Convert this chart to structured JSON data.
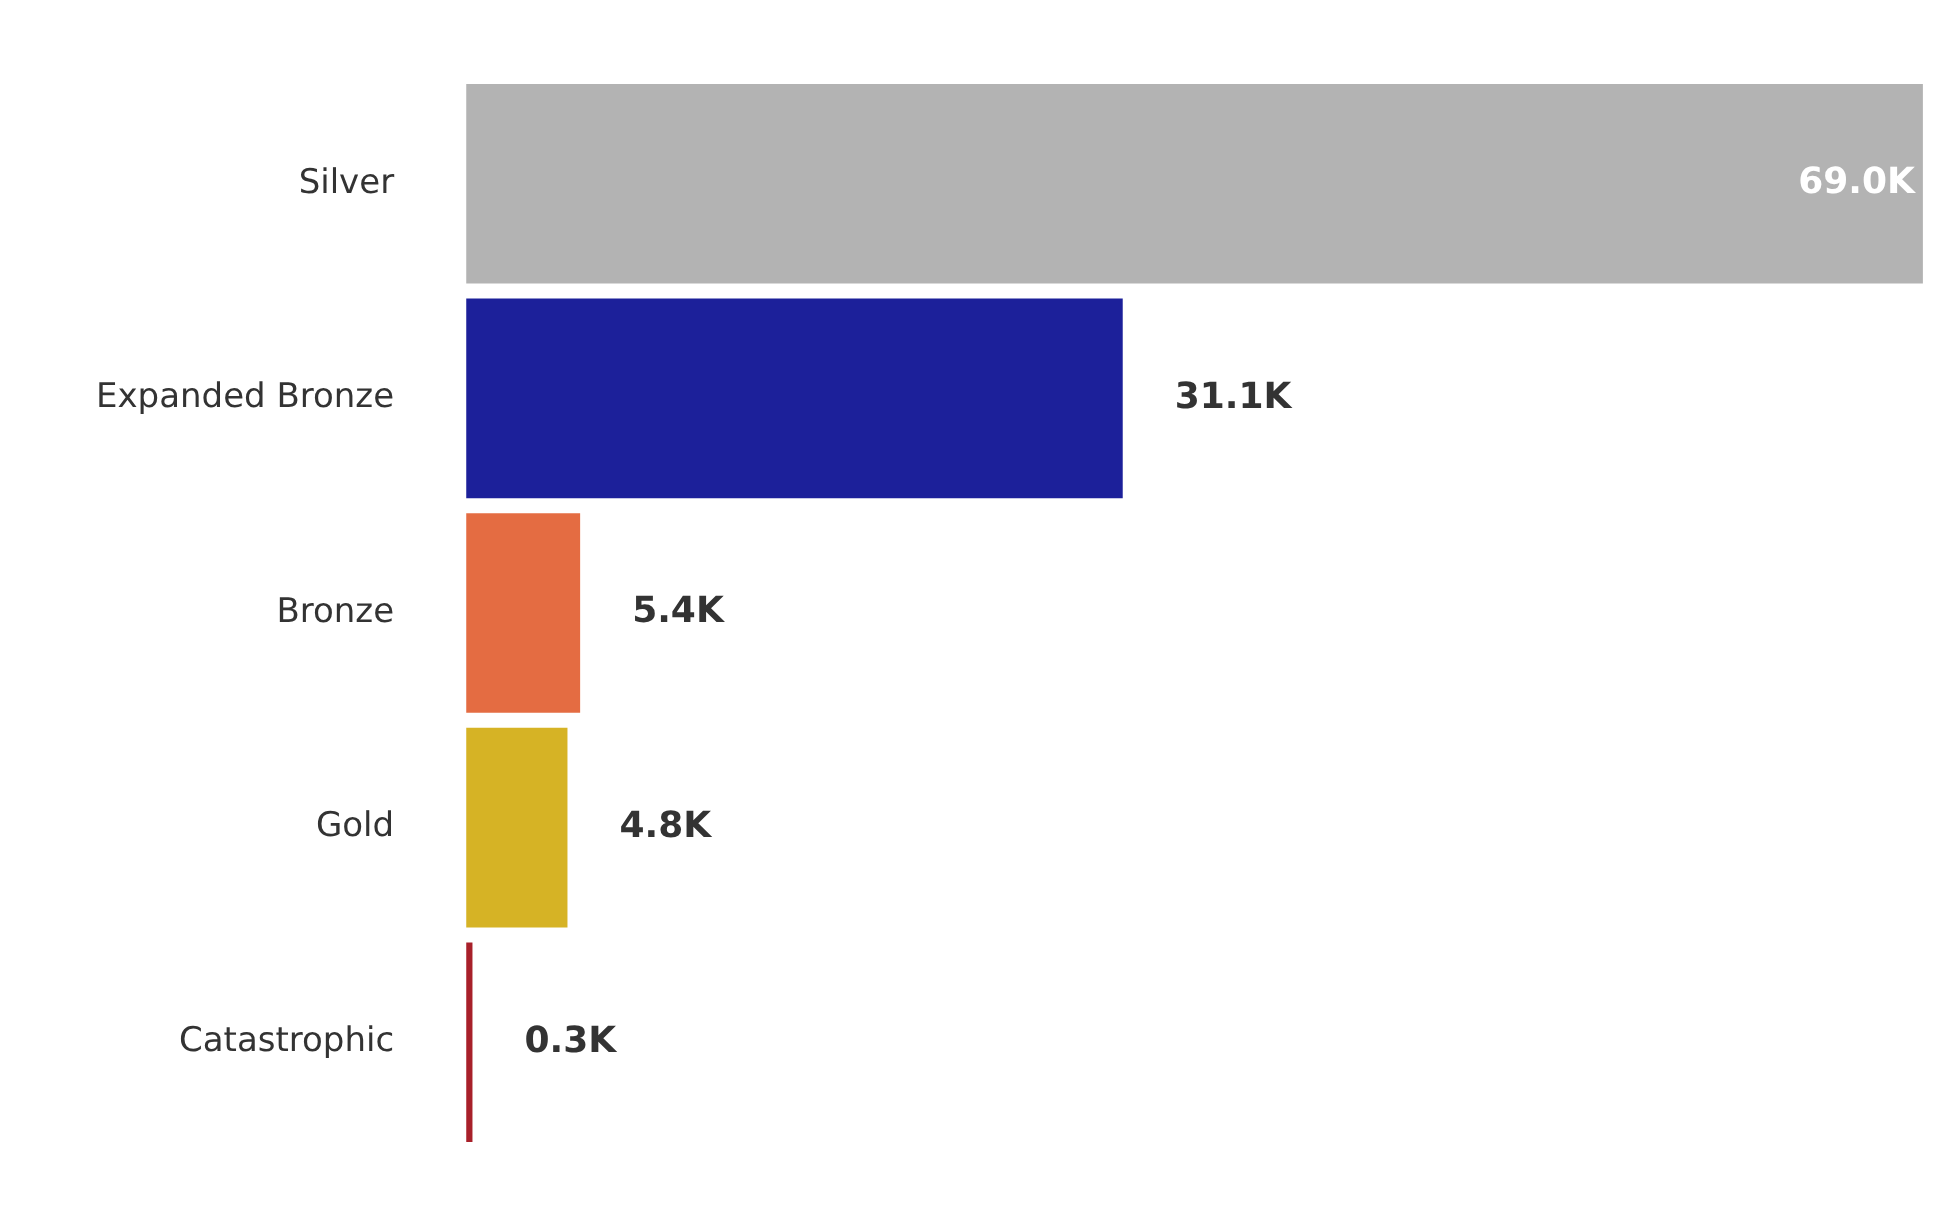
{
  "chart_data": {
    "type": "bar",
    "orientation": "horizontal",
    "categories": [
      "Silver",
      "Expanded Bronze",
      "Bronze",
      "Gold",
      "Catastrophic"
    ],
    "values": [
      69.0,
      31.1,
      5.4,
      4.8,
      0.3
    ],
    "colors": [
      "#b3b3b3",
      "#1c209a",
      "#e46c42",
      "#d6b325",
      "#a8202a"
    ],
    "value_labels": [
      "69.0K",
      "31.1K",
      "5.4K",
      "4.8K",
      "0.3K"
    ],
    "legend": false
  }
}
